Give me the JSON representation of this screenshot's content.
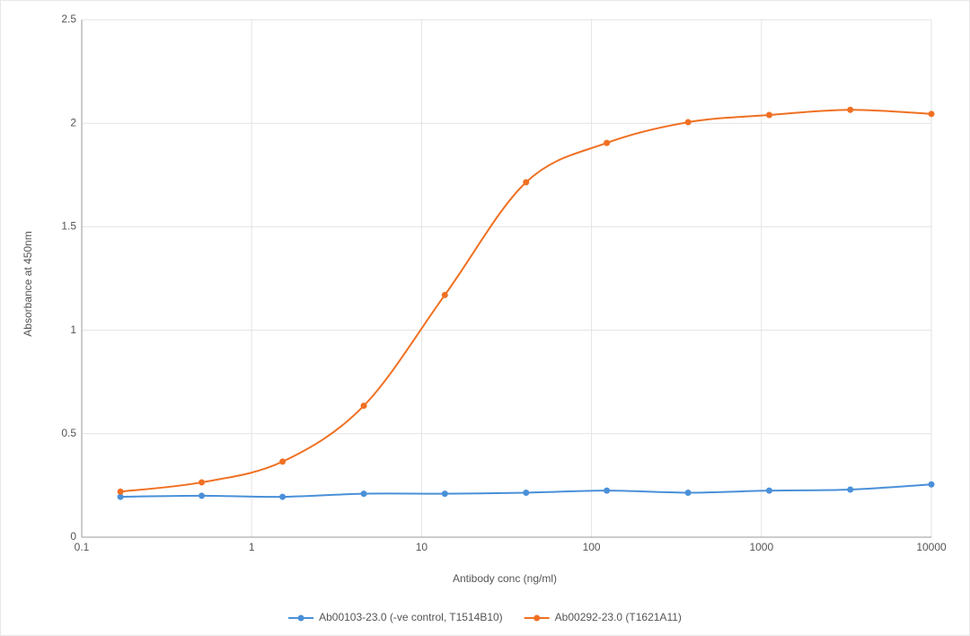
{
  "chart_data": {
    "type": "line",
    "x_label": "Antibody conc (ng/ml)",
    "y_label": "Absorbance at 450nm",
    "x": [
      0.169,
      0.508,
      1.52,
      4.57,
      13.7,
      41.2,
      123,
      370,
      1111,
      3333,
      10000
    ],
    "series": [
      {
        "name": "Ab00103-23.0 (-ve control, T1514B10)",
        "color": "#4a90d9",
        "values": [
          0.195,
          0.2,
          0.195,
          0.21,
          0.21,
          0.215,
          0.225,
          0.215,
          0.225,
          0.23,
          0.255
        ]
      },
      {
        "name": "Ab00292-23.0 (T1621A11)",
        "color": "#f07022",
        "values": [
          0.22,
          0.265,
          0.365,
          0.635,
          1.17,
          1.715,
          1.905,
          2.005,
          2.04,
          2.065,
          2.045
        ]
      }
    ],
    "x_log": true,
    "xlim": [
      0.1,
      10000
    ],
    "xticks": [
      0.1,
      1,
      10,
      100,
      1000,
      10000
    ],
    "ylim": [
      0,
      2.5
    ],
    "yticks": [
      0,
      0.5,
      1,
      1.5,
      2,
      2.5
    ],
    "grid": true,
    "legend": "bottom"
  }
}
